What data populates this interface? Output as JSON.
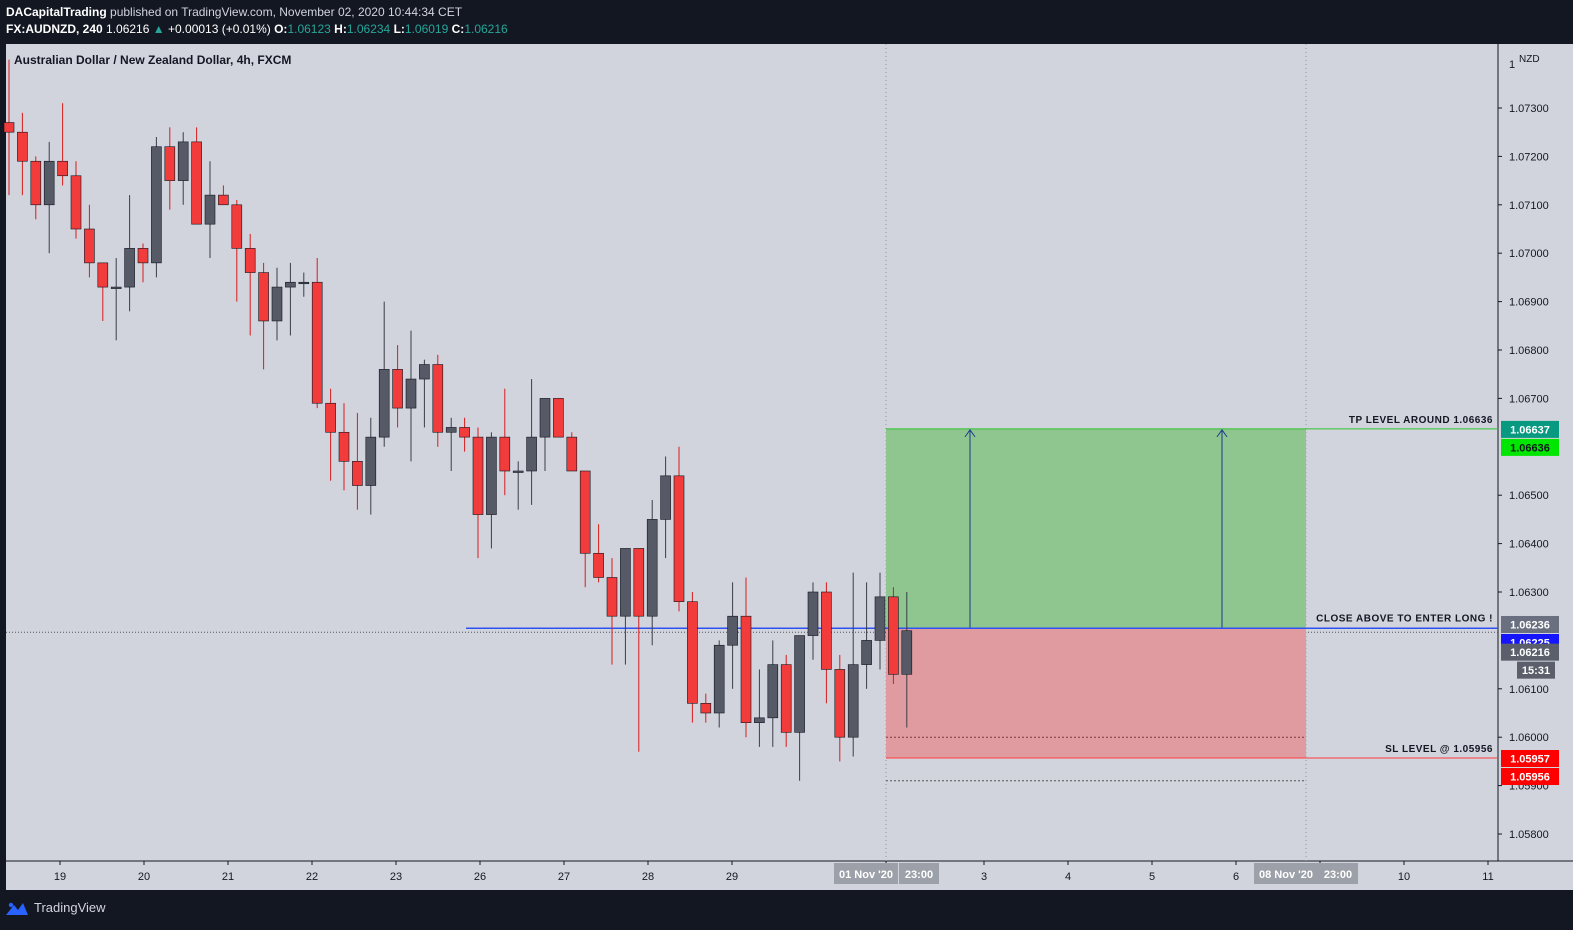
{
  "header": {
    "author": "DACapitalTrading",
    "published_text": "published on TradingView.com, November 02, 2020 10:44:34 CET",
    "symbol": "FX:AUDNZD, 240",
    "last_price": "1.06216",
    "change_arrow": "▲",
    "change": "+0.00013 (+0.01%)",
    "o_label": "O:",
    "o_value": "1.06123",
    "h_label": "H:",
    "h_value": "1.06234",
    "l_label": "L:",
    "l_value": "1.06019",
    "c_label": "C:",
    "c_value": "1.06216"
  },
  "footer": {
    "brand": "TradingView",
    "logo_icon": "tradingview-logo-icon"
  },
  "colors": {
    "bull": "#555a66",
    "bear": "#f23b3b",
    "chart_bg": "#d1d4dc",
    "tp_zone": "#8fc58f",
    "sl_zone": "#df9b9f",
    "entry_line": "#2f52f5"
  },
  "chart_data": {
    "type": "candlestick",
    "title": "Australian Dollar / New Zealand Dollar, 4h, FXCM",
    "currency": "NZD",
    "ylim": [
      1.0574,
      1.0742
    ],
    "y_ticks": [
      1.073,
      1.072,
      1.071,
      1.07,
      1.069,
      1.068,
      1.067,
      1.065,
      1.064,
      1.063,
      1.061,
      1.06,
      1.059,
      1.058
    ],
    "x_ticks": [
      "19",
      "20",
      "21",
      "22",
      "23",
      "26",
      "27",
      "28",
      "29",
      "Nov",
      "3",
      "4",
      "5",
      "6",
      "9",
      "10",
      "11"
    ],
    "candles": [
      [
        1.0727,
        1.074,
        1.0712,
        1.0725
      ],
      [
        1.0725,
        1.0729,
        1.0712,
        1.0719
      ],
      [
        1.0719,
        1.072,
        1.0707,
        1.071
      ],
      [
        1.071,
        1.0723,
        1.07,
        1.0719
      ],
      [
        1.0719,
        1.0731,
        1.0714,
        1.0716
      ],
      [
        1.0716,
        1.0719,
        1.0703,
        1.0705
      ],
      [
        1.0705,
        1.071,
        1.0695,
        1.0698
      ],
      [
        1.0698,
        1.0698,
        1.0686,
        1.0693
      ],
      [
        1.0693,
        1.0699,
        1.0682,
        1.0693
      ],
      [
        1.0693,
        1.0712,
        1.0688,
        1.0701
      ],
      [
        1.0701,
        1.0702,
        1.0694,
        1.0698
      ],
      [
        1.0698,
        1.0724,
        1.0695,
        1.0722
      ],
      [
        1.0722,
        1.0726,
        1.0709,
        1.0715
      ],
      [
        1.0715,
        1.0725,
        1.071,
        1.0723
      ],
      [
        1.0723,
        1.0726,
        1.0706,
        1.0706
      ],
      [
        1.0706,
        1.0719,
        1.0699,
        1.0712
      ],
      [
        1.0712,
        1.0714,
        1.071,
        1.071
      ],
      [
        1.071,
        1.0711,
        1.069,
        1.0701
      ],
      [
        1.0701,
        1.0704,
        1.0683,
        1.0696
      ],
      [
        1.0696,
        1.0698,
        1.0676,
        1.0686
      ],
      [
        1.0686,
        1.0697,
        1.0682,
        1.0693
      ],
      [
        1.0693,
        1.0698,
        1.0683,
        1.0694
      ],
      [
        1.0694,
        1.0696,
        1.0691,
        1.0694
      ],
      [
        1.0694,
        1.0699,
        1.0668,
        1.0669
      ],
      [
        1.0669,
        1.0672,
        1.0653,
        1.0663
      ],
      [
        1.0663,
        1.0669,
        1.0651,
        1.0657
      ],
      [
        1.0657,
        1.0667,
        1.0647,
        1.0652
      ],
      [
        1.0652,
        1.0666,
        1.0646,
        1.0662
      ],
      [
        1.0662,
        1.069,
        1.066,
        1.0676
      ],
      [
        1.0676,
        1.0681,
        1.0664,
        1.0668
      ],
      [
        1.0668,
        1.0684,
        1.0657,
        1.0674
      ],
      [
        1.0674,
        1.0678,
        1.0664,
        1.0677
      ],
      [
        1.0677,
        1.0679,
        1.066,
        1.0663
      ],
      [
        1.0663,
        1.0666,
        1.0655,
        1.0664
      ],
      [
        1.0664,
        1.0666,
        1.0659,
        1.0662
      ],
      [
        1.0662,
        1.0664,
        1.0637,
        1.0646
      ],
      [
        1.0646,
        1.0663,
        1.0639,
        1.0662
      ],
      [
        1.0662,
        1.0672,
        1.065,
        1.0655
      ],
      [
        1.0655,
        1.0657,
        1.0647,
        1.0655
      ],
      [
        1.0655,
        1.0674,
        1.0648,
        1.0662
      ],
      [
        1.0662,
        1.067,
        1.0655,
        1.067
      ],
      [
        1.067,
        1.067,
        1.0662,
        1.0662
      ],
      [
        1.0662,
        1.0663,
        1.0655,
        1.0655
      ],
      [
        1.0655,
        1.0655,
        1.0631,
        1.0638
      ],
      [
        1.0638,
        1.0644,
        1.0632,
        1.0633
      ],
      [
        1.0633,
        1.0637,
        1.0615,
        1.0625
      ],
      [
        1.0625,
        1.0639,
        1.0615,
        1.0639
      ],
      [
        1.0639,
        1.0639,
        1.0597,
        1.0625
      ],
      [
        1.0625,
        1.0649,
        1.0619,
        1.0645
      ],
      [
        1.0645,
        1.0658,
        1.0637,
        1.0654
      ],
      [
        1.0654,
        1.066,
        1.0626,
        1.0628
      ],
      [
        1.0628,
        1.063,
        1.0603,
        1.0607
      ],
      [
        1.0607,
        1.0609,
        1.0603,
        1.0605
      ],
      [
        1.0605,
        1.062,
        1.0602,
        1.0619
      ],
      [
        1.0619,
        1.0632,
        1.061,
        1.0625
      ],
      [
        1.0625,
        1.0633,
        1.06,
        1.0603
      ],
      [
        1.0603,
        1.0614,
        1.0598,
        1.0604
      ],
      [
        1.0604,
        1.062,
        1.0598,
        1.0615
      ],
      [
        1.0615,
        1.0617,
        1.0598,
        1.0601
      ],
      [
        1.0601,
        1.0621,
        1.0591,
        1.0621
      ],
      [
        1.0621,
        1.0632,
        1.0616,
        1.063
      ],
      [
        1.063,
        1.0632,
        1.0607,
        1.0614
      ],
      [
        1.0614,
        1.0617,
        1.0595,
        1.06
      ],
      [
        1.06,
        1.0634,
        1.0596,
        1.0615
      ],
      [
        1.0615,
        1.0632,
        1.061,
        1.062
      ],
      [
        1.062,
        1.0634,
        1.0614,
        1.0629
      ],
      [
        1.0629,
        1.0631,
        1.0611,
        1.0613
      ],
      [
        1.0613,
        1.063,
        1.0602,
        1.0622
      ]
    ],
    "position": {
      "tp": 1.06637,
      "entry": 1.06225,
      "sl": 1.05957,
      "tp_label": "TP LEVEL AROUND 1.06636",
      "entry_label": "CLOSE ABOVE TO ENTER LONG !",
      "sl_label": "SL LEVEL @ 1.05956"
    },
    "price_tags": [
      {
        "text": "1.06637",
        "value": 1.06637,
        "bg": "#089981",
        "fg": "#ffffff"
      },
      {
        "text": "1.06636",
        "value": 1.06636,
        "bg": "#00e600",
        "fg": "#131722"
      },
      {
        "text": "1.06236",
        "value": 1.06236,
        "bg": "#6b7080",
        "fg": "#ffffff"
      },
      {
        "text": "1.06225",
        "value": 1.06225,
        "bg": "#1414ff",
        "fg": "#ffffff"
      },
      {
        "text": "1.06216",
        "value": 1.06216,
        "bg": "#5a5f6b",
        "fg": "#ffffff"
      },
      {
        "text": "15:31",
        "value": 1.06216,
        "bg": "#5a5f6b",
        "fg": "#ffffff"
      },
      {
        "text": "1.05957",
        "value": 1.05957,
        "bg": "#ff0000",
        "fg": "#ffffff"
      },
      {
        "text": "1.05956",
        "value": 1.05956,
        "bg": "#ff0000",
        "fg": "#ffffff"
      }
    ],
    "time_tags": [
      "01 Nov '20",
      "23:00",
      "08 Nov '20",
      "23:00"
    ]
  }
}
